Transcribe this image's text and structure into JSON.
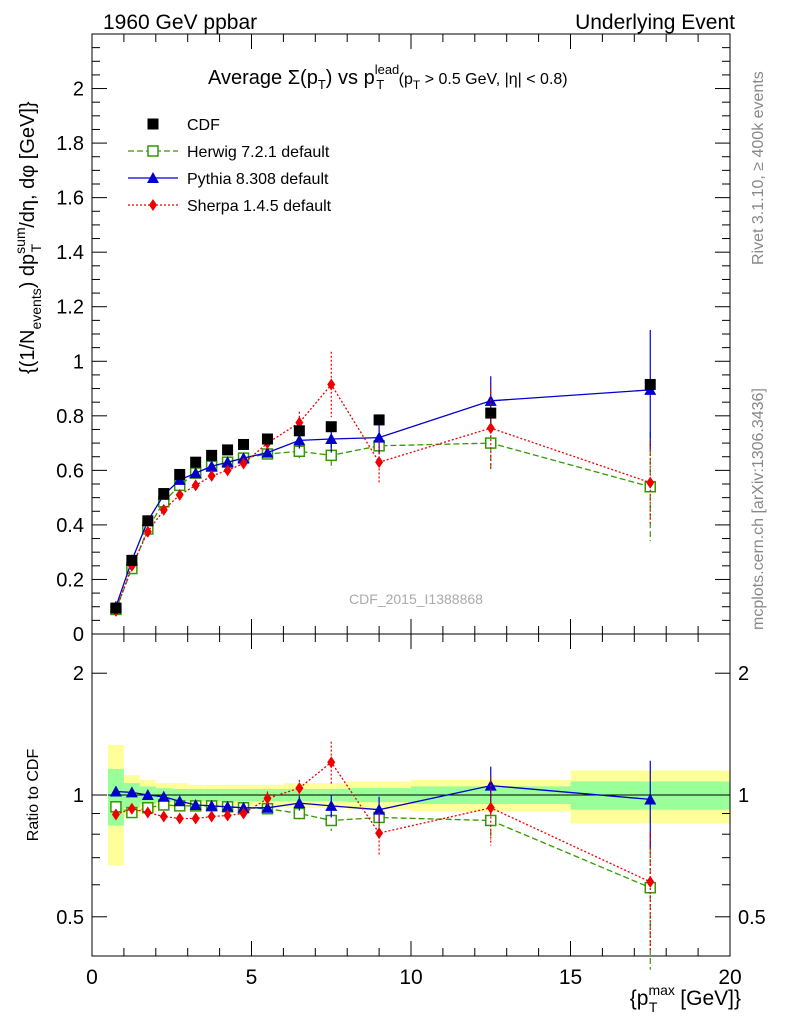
{
  "header": {
    "left": "1960 GeV ppbar",
    "right": "Underlying Event"
  },
  "side_labels": {
    "top": "Rivet 3.1.10, ≥ 400k events",
    "bottom": "mcplots.cern.ch [arXiv:1306.3436]"
  },
  "watermark": "CDF_2015_I1388868",
  "colors": {
    "cdf": "#000000",
    "herwig": "#339900",
    "pythia": "#0000cc",
    "sherpa": "#ee0000",
    "band_inner": "#99ff99",
    "band_outer": "#ffff99"
  },
  "chart_data": [
    {
      "type": "scatter",
      "panel": "main",
      "title": {
        "prefix": "Average ",
        "sigma": "Σ(p",
        "sigma_sub": "T",
        "mid": ") vs p",
        "lead_sup": "lead",
        "lead_sub": "T",
        "cut_open": " (p",
        "cut_sub": "T",
        "cut_rest": " > 0.5 GeV, |η| < 0.8)"
      },
      "ylabel": {
        "open": "{(1/N",
        "events_sub": "events",
        "mid": ") dp",
        "sum_sup": "sum",
        "t_sub": "T",
        "rest": "/dη, dφ [GeV]}"
      },
      "xlim": [
        0,
        20
      ],
      "ylim": [
        0,
        2.2
      ],
      "yticks": [
        0,
        0.2,
        0.4,
        0.6,
        0.8,
        1,
        1.2,
        1.4,
        1.6,
        1.8,
        2
      ],
      "ytick_labels": [
        "0",
        "0.2",
        "0.4",
        "0.6",
        "0.8",
        "1",
        "1.2",
        "1.4",
        "1.6",
        "1.8",
        "2"
      ],
      "legend_position": "top-left",
      "series": [
        {
          "name": "CDF",
          "style": "square-filled",
          "x": [
            0.75,
            1.25,
            1.75,
            2.25,
            2.75,
            3.25,
            3.75,
            4.25,
            4.75,
            5.5,
            6.5,
            7.5,
            9.0,
            12.5,
            17.5
          ],
          "y": [
            0.095,
            0.27,
            0.415,
            0.515,
            0.585,
            0.63,
            0.655,
            0.675,
            0.695,
            0.715,
            0.745,
            0.76,
            0.785,
            0.81,
            0.915
          ]
        },
        {
          "name": "Herwig 7.2.1 default",
          "style": "square-open-dashed",
          "x": [
            0.75,
            1.25,
            1.75,
            2.25,
            2.75,
            3.25,
            3.75,
            4.25,
            4.75,
            5.5,
            6.5,
            7.5,
            9.0,
            12.5,
            17.5
          ],
          "y": [
            0.09,
            0.24,
            0.385,
            0.485,
            0.545,
            0.59,
            0.615,
            0.63,
            0.645,
            0.66,
            0.67,
            0.655,
            0.69,
            0.7,
            0.54
          ],
          "err": [
            0.01,
            0.01,
            0.01,
            0.01,
            0.01,
            0.01,
            0.01,
            0.012,
            0.012,
            0.015,
            0.03,
            0.05,
            0.06,
            0.09,
            0.2
          ]
        },
        {
          "name": "Pythia 8.308 default",
          "style": "triangle-solid",
          "x": [
            0.75,
            1.25,
            1.75,
            2.25,
            2.75,
            3.25,
            3.75,
            4.25,
            4.75,
            5.5,
            6.5,
            7.5,
            9.0,
            12.5,
            17.5
          ],
          "y": [
            0.1,
            0.27,
            0.415,
            0.51,
            0.565,
            0.59,
            0.615,
            0.63,
            0.645,
            0.665,
            0.71,
            0.715,
            0.72,
            0.855,
            0.895
          ],
          "err": [
            0.01,
            0.01,
            0.01,
            0.01,
            0.01,
            0.01,
            0.01,
            0.012,
            0.012,
            0.015,
            0.03,
            0.05,
            0.06,
            0.09,
            0.22
          ]
        },
        {
          "name": "Sherpa 1.4.5 default",
          "style": "diamond-dotted",
          "x": [
            0.75,
            1.25,
            1.75,
            2.25,
            2.75,
            3.25,
            3.75,
            4.25,
            4.75,
            5.5,
            6.5,
            7.5,
            9.0,
            12.5,
            17.5
          ],
          "y": [
            0.085,
            0.25,
            0.375,
            0.455,
            0.51,
            0.545,
            0.58,
            0.6,
            0.625,
            0.7,
            0.775,
            0.915,
            0.63,
            0.755,
            0.555
          ],
          "err": [
            0.01,
            0.01,
            0.01,
            0.01,
            0.01,
            0.01,
            0.015,
            0.02,
            0.02,
            0.03,
            0.04,
            0.12,
            0.08,
            0.15,
            0.15
          ]
        }
      ]
    },
    {
      "type": "scatter",
      "panel": "ratio",
      "ylabel": "Ratio to CDF",
      "xlabel": {
        "open": "{p",
        "max_sup": "max",
        "t_sub": "T",
        "rest": " [GeV]}"
      },
      "yscale": "log",
      "xlim": [
        0,
        20
      ],
      "ylim": [
        0.4,
        2.5
      ],
      "yticks": [
        0.5,
        1,
        2
      ],
      "ytick_labels": [
        "0.5",
        "1",
        "2"
      ],
      "xticks": [
        0,
        5,
        10,
        15,
        20
      ],
      "xtick_labels": [
        "0",
        "5",
        "10",
        "15",
        "20"
      ],
      "band_bins": [
        [
          0.5,
          1.0
        ],
        [
          1.0,
          1.5
        ],
        [
          1.5,
          2.0
        ],
        [
          2.0,
          2.5
        ],
        [
          2.5,
          3.0
        ],
        [
          3.0,
          3.5
        ],
        [
          3.5,
          4.0
        ],
        [
          4.0,
          4.5
        ],
        [
          4.5,
          5.0
        ],
        [
          5.0,
          6.0
        ],
        [
          6.0,
          7.0
        ],
        [
          7.0,
          8.0
        ],
        [
          8.0,
          10.0
        ],
        [
          10.0,
          15.0
        ],
        [
          15.0,
          20.0
        ]
      ],
      "band_inner_halfwidth": [
        0.16,
        0.07,
        0.05,
        0.04,
        0.035,
        0.035,
        0.035,
        0.035,
        0.035,
        0.035,
        0.035,
        0.035,
        0.04,
        0.05,
        0.08
      ],
      "band_outer_halfwidth": [
        0.33,
        0.12,
        0.09,
        0.07,
        0.07,
        0.06,
        0.06,
        0.06,
        0.06,
        0.06,
        0.07,
        0.07,
        0.08,
        0.09,
        0.15
      ],
      "series": [
        {
          "name": "Herwig 7.2.1 default",
          "x": [
            0.75,
            1.25,
            1.75,
            2.25,
            2.75,
            3.25,
            3.75,
            4.25,
            4.75,
            5.5,
            6.5,
            7.5,
            9.0,
            12.5,
            17.5
          ],
          "y": [
            0.935,
            0.905,
            0.93,
            0.945,
            0.94,
            0.94,
            0.94,
            0.935,
            0.93,
            0.925,
            0.9,
            0.865,
            0.88,
            0.865,
            0.59
          ],
          "err": [
            0.02,
            0.02,
            0.02,
            0.02,
            0.02,
            0.02,
            0.02,
            0.02,
            0.02,
            0.02,
            0.03,
            0.05,
            0.06,
            0.09,
            0.22
          ]
        },
        {
          "name": "Pythia 8.308 default",
          "x": [
            0.75,
            1.25,
            1.75,
            2.25,
            2.75,
            3.25,
            3.75,
            4.25,
            4.75,
            5.5,
            6.5,
            7.5,
            9.0,
            12.5,
            17.5
          ],
          "y": [
            1.02,
            1.015,
            1.0,
            0.99,
            0.965,
            0.945,
            0.94,
            0.935,
            0.93,
            0.93,
            0.955,
            0.94,
            0.92,
            1.055,
            0.975
          ],
          "err": [
            0.02,
            0.02,
            0.02,
            0.02,
            0.02,
            0.02,
            0.02,
            0.02,
            0.02,
            0.02,
            0.04,
            0.06,
            0.07,
            0.12,
            0.24
          ]
        },
        {
          "name": "Sherpa 1.4.5 default",
          "x": [
            0.75,
            1.25,
            1.75,
            2.25,
            2.75,
            3.25,
            3.75,
            4.25,
            4.75,
            5.5,
            6.5,
            7.5,
            9.0,
            12.5,
            17.5
          ],
          "y": [
            0.895,
            0.925,
            0.905,
            0.885,
            0.875,
            0.875,
            0.885,
            0.89,
            0.9,
            0.98,
            1.04,
            1.205,
            0.805,
            0.93,
            0.61
          ],
          "err": [
            0.02,
            0.02,
            0.02,
            0.02,
            0.02,
            0.02,
            0.02,
            0.03,
            0.03,
            0.04,
            0.05,
            0.15,
            0.1,
            0.18,
            0.2
          ]
        }
      ]
    }
  ]
}
